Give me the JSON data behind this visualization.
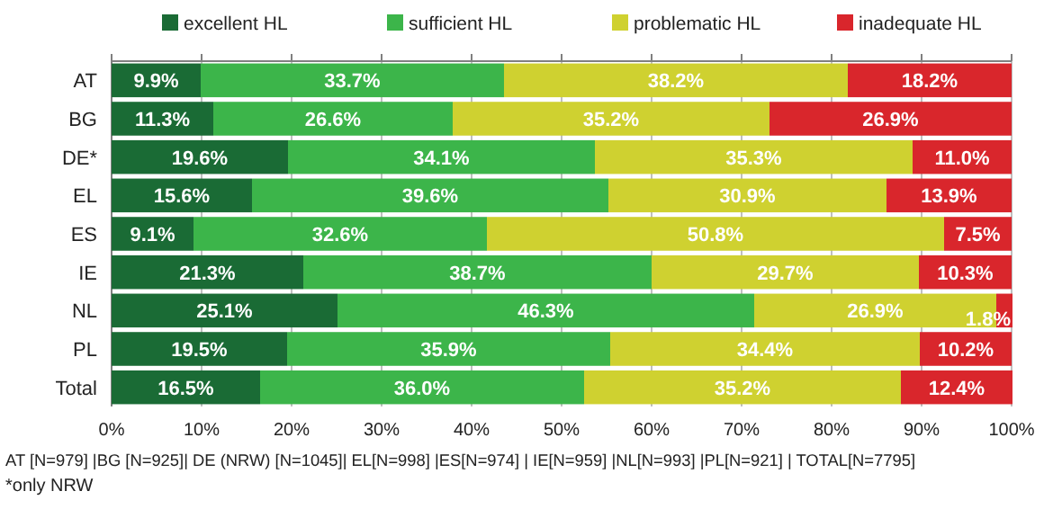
{
  "chart_data": {
    "type": "bar",
    "orientation": "horizontal",
    "stacked": true,
    "categories": [
      "AT",
      "BG",
      "DE*",
      "EL",
      "ES",
      "IE",
      "NL",
      "PL",
      "Total"
    ],
    "series": [
      {
        "name": "excellent HL",
        "color": "#1a6b35",
        "values": [
          9.9,
          11.3,
          19.6,
          15.6,
          9.1,
          21.3,
          25.1,
          19.5,
          16.5
        ],
        "value_labels": [
          "9.9%",
          "11.3%",
          "19.6%",
          "15.6%",
          "9.1%",
          "21.3%",
          "25.1%",
          "19.5%",
          "16.5%"
        ]
      },
      {
        "name": "sufficient HL",
        "color": "#3cb54a",
        "values": [
          33.7,
          26.6,
          34.1,
          39.6,
          32.6,
          38.7,
          46.3,
          35.9,
          36.0
        ],
        "value_labels": [
          "33.7%",
          "26.6%",
          "34.1%",
          "39.6%",
          "32.6%",
          "38.7%",
          "46.3%",
          "35.9%",
          "36.0%"
        ]
      },
      {
        "name": "problematic HL",
        "color": "#cfd130",
        "values": [
          38.2,
          35.2,
          35.3,
          30.9,
          50.8,
          29.7,
          26.9,
          34.4,
          35.2
        ],
        "value_labels": [
          "38.2%",
          "35.2%",
          "35.3%",
          "30.9%",
          "50.8%",
          "29.7%",
          "26.9%",
          "34.4%",
          "35.2%"
        ]
      },
      {
        "name": "inadequate HL",
        "color": "#d9262c",
        "values": [
          18.2,
          26.9,
          11.0,
          13.9,
          7.5,
          10.3,
          1.8,
          10.2,
          12.4
        ],
        "value_labels": [
          "18.2%",
          "26.9%",
          "11.0%",
          "13.9%",
          "7.5%",
          "10.3%",
          "1.8%",
          "10.2%",
          "12.4%"
        ]
      }
    ],
    "xlim": [
      0,
      100
    ],
    "xticks": [
      {
        "value": 0,
        "label": "0%"
      },
      {
        "value": 10,
        "label": "10%"
      },
      {
        "value": 20,
        "label": "20%"
      },
      {
        "value": 30,
        "label": "30%"
      },
      {
        "value": 40,
        "label": "40%"
      },
      {
        "value": 50,
        "label": "50%"
      },
      {
        "value": 60,
        "label": "60%"
      },
      {
        "value": 70,
        "label": "70%"
      },
      {
        "value": 80,
        "label": "80%"
      },
      {
        "value": 90,
        "label": "90%"
      },
      {
        "value": 100,
        "label": "100%"
      }
    ],
    "grid": "x",
    "legend": "top",
    "annotations": [
      "AT [N=979] |BG [N=925]| DE (NRW) [N=1045]| EL[N=998] |ES[N=974] | IE[N=959] |NL[N=993] |PL[N=921] | TOTAL[N=7795]",
      "*only NRW"
    ]
  }
}
